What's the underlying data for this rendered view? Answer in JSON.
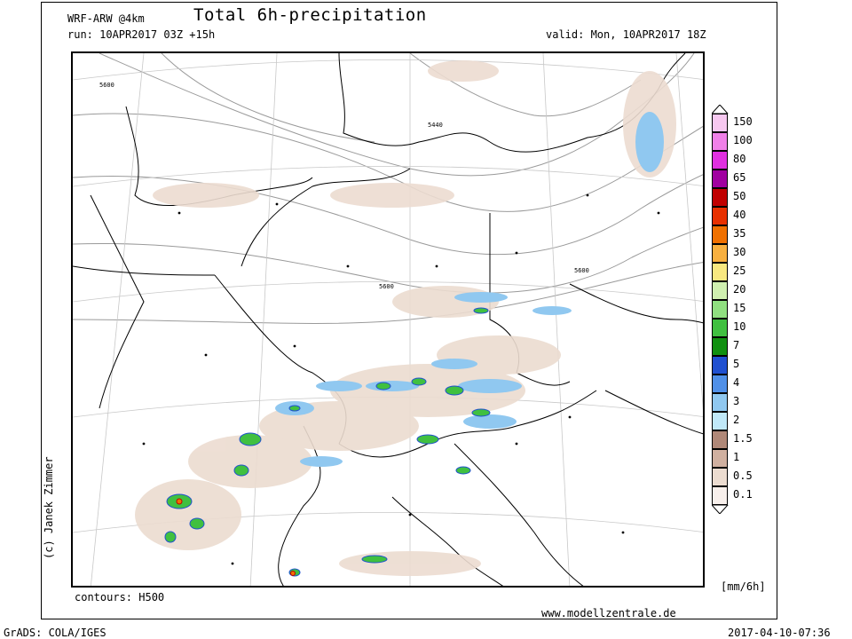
{
  "header": {
    "model": "WRF-ARW @4km",
    "title": "Total 6h-precipitation",
    "run": "run: 10APR2017 03Z +15h",
    "valid": "valid: Mon, 10APR2017 18Z"
  },
  "map": {
    "contour_labels": [
      "5600",
      "5440",
      "5600",
      "5600"
    ],
    "contours_note": "contours: H500",
    "credit": "(c) Janek Zimmer",
    "website": "www.modellzentrale.de"
  },
  "legend": {
    "unit": "[mm/6h]",
    "levels": [
      "150",
      "100",
      "80",
      "65",
      "50",
      "40",
      "35",
      "30",
      "25",
      "20",
      "15",
      "10",
      "7",
      "5",
      "4",
      "3",
      "2",
      "1.5",
      "1",
      "0.5",
      "0.1"
    ],
    "colors": [
      "#f7c8f0",
      "#f080e8",
      "#e030e0",
      "#a000a0",
      "#c00000",
      "#e83000",
      "#f07000",
      "#f8b040",
      "#f8e880",
      "#d0f0b0",
      "#90e080",
      "#40c040",
      "#109010",
      "#2050d0",
      "#5090e8",
      "#90c8f0",
      "#c0e8f8",
      "#b08878",
      "#d0b0a0",
      "#ecdcd0",
      "#f8f0ec"
    ]
  },
  "footer": {
    "left": "GrADS: COLA/IGES",
    "right": "2017-04-10-07:36"
  }
}
